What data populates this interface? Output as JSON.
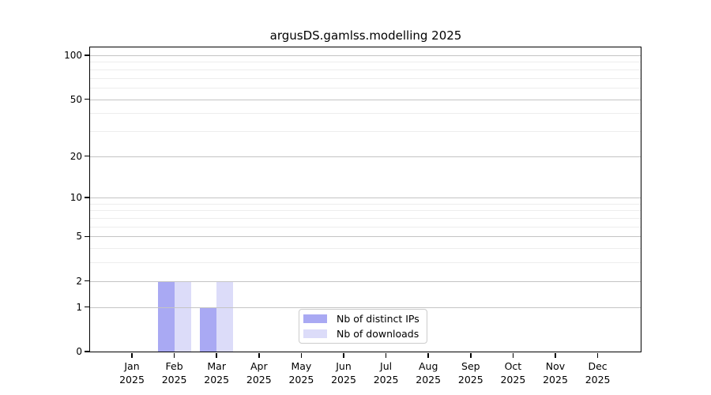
{
  "chart_data": {
    "type": "bar",
    "title": "argusDS.gamlss.modelling 2025",
    "categories": [
      "Jan",
      "Feb",
      "Mar",
      "Apr",
      "May",
      "Jun",
      "Jul",
      "Aug",
      "Sep",
      "Oct",
      "Nov",
      "Dec"
    ],
    "year_label": "2025",
    "series": [
      {
        "name": "Nb of distinct IPs",
        "color": "#a9a9f3",
        "values": [
          0,
          2,
          1,
          0,
          0,
          0,
          0,
          0,
          0,
          0,
          0,
          0
        ]
      },
      {
        "name": "Nb of downloads",
        "color": "#dcdcf9",
        "values": [
          0,
          2,
          2,
          0,
          0,
          0,
          0,
          0,
          0,
          0,
          0,
          0
        ]
      }
    ],
    "y_axis": {
      "scale": "log1p",
      "max": 100,
      "ticks": [
        0,
        1,
        2,
        5,
        10,
        20,
        50,
        100
      ],
      "minor_gridlines": [
        3,
        4,
        6,
        7,
        8,
        9,
        30,
        40,
        60,
        70,
        80,
        90
      ]
    },
    "xlabel": "",
    "ylabel": "",
    "grid": "horizontal",
    "legend_position": "bottom-center"
  },
  "style": {
    "major_grid_color": "#c4c4c4",
    "minor_grid_color": "#ededed",
    "axis_color": "#000000",
    "text_color": "#000000",
    "legend_border_color": "#cccccc",
    "background": "#ffffff"
  }
}
